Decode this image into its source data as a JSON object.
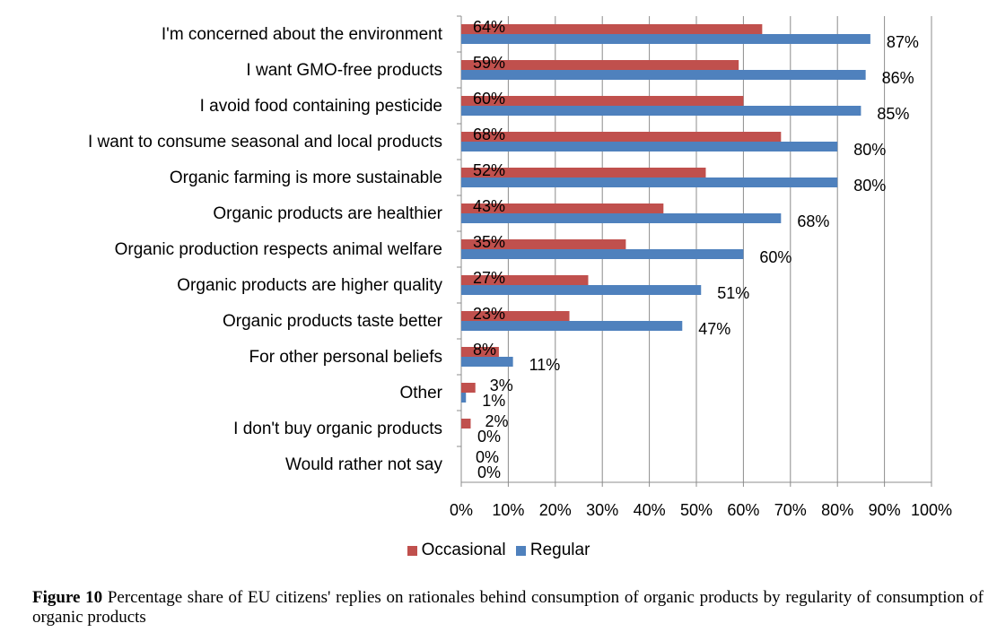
{
  "figure": {
    "caption_label": "Figure 10",
    "caption_text": "Percentage share of EU citizens' replies on rationales behind consumption of organic products by regularity of consumption of organic products"
  },
  "chart_data": {
    "type": "bar",
    "orientation": "horizontal",
    "categories": [
      "I'm concerned about the environment",
      "I want GMO-free products",
      "I avoid food containing pesticide",
      "I want to consume seasonal and local products",
      "Organic farming is more sustainable",
      "Organic products are healthier",
      "Organic production respects animal welfare",
      "Organic products are higher quality",
      "Organic products taste better",
      "For other personal beliefs",
      "Other",
      "I don't buy organic products",
      "Would rather not say"
    ],
    "series": [
      {
        "name": "Occasional",
        "color": "#c0504d",
        "values": [
          64,
          59,
          60,
          68,
          52,
          43,
          35,
          27,
          23,
          8,
          3,
          2,
          0
        ],
        "labels": [
          "64%",
          "59%",
          "60%",
          "68%",
          "52%",
          "43%",
          "35%",
          "27%",
          "23%",
          "8%",
          "3%",
          "2%",
          "0%"
        ]
      },
      {
        "name": "Regular",
        "color": "#4f81bd",
        "values": [
          87,
          86,
          85,
          80,
          80,
          68,
          60,
          51,
          47,
          11,
          1,
          0,
          0
        ],
        "labels": [
          "87%",
          "86%",
          "85%",
          "80%",
          "80%",
          "68%",
          "60%",
          "51%",
          "47%",
          "11%",
          "1%",
          "0%",
          "0%"
        ]
      }
    ],
    "xlim": [
      0,
      100
    ],
    "xticks": [
      "0%",
      "10%",
      "20%",
      "30%",
      "40%",
      "50%",
      "60%",
      "70%",
      "80%",
      "90%",
      "100%"
    ],
    "grid": "vertical",
    "legend_position": "bottom"
  }
}
